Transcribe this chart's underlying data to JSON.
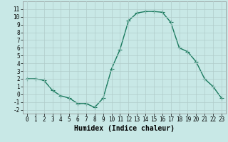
{
  "x": [
    0,
    1,
    2,
    3,
    4,
    5,
    6,
    7,
    8,
    9,
    10,
    11,
    12,
    13,
    14,
    15,
    16,
    17,
    18,
    19,
    20,
    21,
    22,
    23
  ],
  "y": [
    2,
    2,
    1.8,
    0.5,
    -0.2,
    -0.5,
    -1.2,
    -1.2,
    -1.7,
    -0.5,
    3.3,
    5.8,
    9.5,
    10.5,
    10.7,
    10.7,
    10.6,
    9.3,
    6.0,
    5.5,
    4.2,
    2.0,
    1.0,
    -0.5
  ],
  "color": "#1a7a5e",
  "bg_color": "#c8e8e6",
  "grid_color": "#b0ccca",
  "xlabel": "Humidex (Indice chaleur)",
  "ylim": [
    -2.5,
    12.0
  ],
  "xlim": [
    -0.5,
    23.5
  ],
  "yticks": [
    -2,
    -1,
    0,
    1,
    2,
    3,
    4,
    5,
    6,
    7,
    8,
    9,
    10,
    11
  ],
  "xticks": [
    0,
    1,
    2,
    3,
    4,
    5,
    6,
    7,
    8,
    9,
    10,
    11,
    12,
    13,
    14,
    15,
    16,
    17,
    18,
    19,
    20,
    21,
    22,
    23
  ],
  "marker": "+",
  "markersize": 4,
  "linewidth": 1.0,
  "xlabel_fontsize": 7,
  "tick_fontsize": 5.5
}
